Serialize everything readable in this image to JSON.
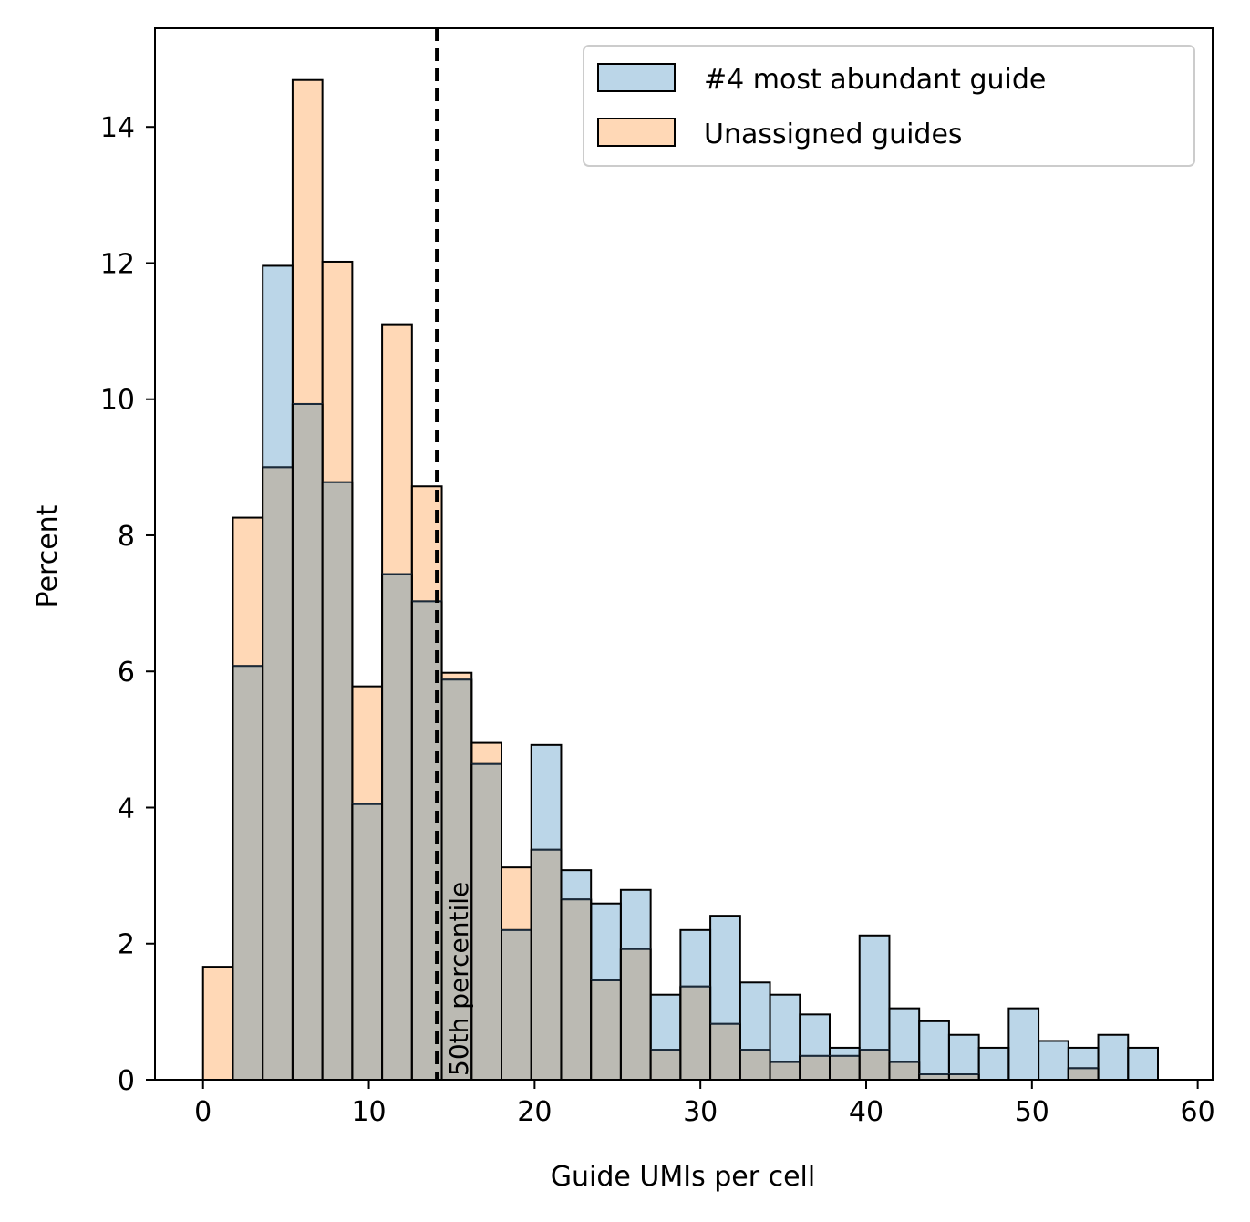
{
  "chart_data": {
    "type": "bar",
    "title": "",
    "xlabel": "Guide UMIs per cell",
    "ylabel": "Percent",
    "xlim": [
      -2.9,
      60.9
    ],
    "ylim": [
      0,
      15.45
    ],
    "xticks": [
      0,
      10,
      20,
      30,
      40,
      50,
      60
    ],
    "yticks": [
      0,
      2,
      4,
      6,
      8,
      10,
      12,
      14
    ],
    "bin_start": 0,
    "bin_width": 1.8,
    "grid": false,
    "legend_position": "top-right",
    "series": [
      {
        "name": "#4 most abundant guide",
        "color": "#1f77b4",
        "values": [
          0,
          6.08,
          11.96,
          9.93,
          8.78,
          4.05,
          7.43,
          7.03,
          5.88,
          4.64,
          2.2,
          4.92,
          3.08,
          2.59,
          2.79,
          1.25,
          2.2,
          2.41,
          1.43,
          1.25,
          0.96,
          0.47,
          2.12,
          1.05,
          0.86,
          0.66,
          0.47,
          1.05,
          0.57,
          0.47,
          0.66,
          0.47
        ]
      },
      {
        "name": "Unassigned guides",
        "color": "#ff7f0e",
        "values": [
          1.66,
          8.26,
          9.0,
          14.69,
          12.02,
          5.78,
          11.1,
          8.72,
          5.98,
          4.95,
          3.12,
          3.38,
          2.65,
          1.46,
          1.92,
          0.44,
          1.37,
          0.82,
          0.44,
          0.26,
          0.35,
          0.35,
          0.44,
          0.26,
          0.08,
          0.08,
          0,
          0,
          0,
          0.17,
          0,
          0
        ]
      }
    ],
    "annotation": {
      "x": 14.1,
      "label": "50th percentile"
    }
  }
}
